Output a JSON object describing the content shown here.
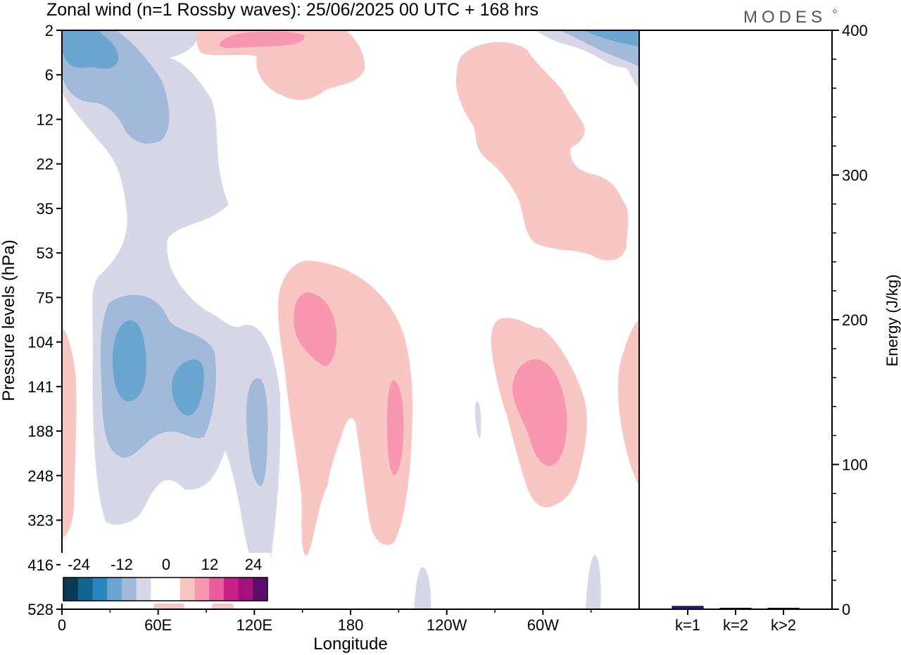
{
  "header": {
    "title": "Zonal wind (n=1 Rossby waves):  25/06/2025  00 UTC  + 168 hrs",
    "logo_text": "MODES"
  },
  "chart_data": [
    {
      "type": "heatmap",
      "title": "Zonal wind (n=1 Rossby waves):  25/06/2025  00 UTC  + 168 hrs",
      "xlabel": "Longitude",
      "ylabel": "Pressure levels (hPa)",
      "x_ticks": [
        "0",
        "60E",
        "120E",
        "180",
        "120W",
        "60W"
      ],
      "x_tick_values": [
        0,
        60,
        120,
        180,
        240,
        300
      ],
      "xlim": [
        0,
        360
      ],
      "y_ticks": [
        "2",
        "6",
        "12",
        "22",
        "35",
        "53",
        "75",
        "104",
        "141",
        "188",
        "248",
        "323",
        "416",
        "528"
      ],
      "y_scale": "pressure levels, top to bottom",
      "colorbar": {
        "tick_labels": [
          "-24",
          "-12",
          "0",
          "12",
          "24"
        ],
        "colors": [
          "#0b3a55",
          "#12658f",
          "#2a86bf",
          "#6aa6cf",
          "#a2bad9",
          "#d6d8e8",
          "#ffffff",
          "#ffffff",
          "#f8c7c3",
          "#f997b0",
          "#ea5c9f",
          "#cc1e8a",
          "#a3117a",
          "#5b0d6b"
        ]
      },
      "regions": [
        {
          "name": "upper-left easterly core",
          "lon_range": [
            0,
            70
          ],
          "levels": [
            "2",
            "22"
          ],
          "sign": "negative",
          "peak": -12
        },
        {
          "name": "western easterly column",
          "lon_range": [
            0,
            100
          ],
          "levels": [
            "2",
            "323"
          ],
          "sign": "negative",
          "peak": -6
        },
        {
          "name": "lower-left easterly core",
          "lon_range": [
            25,
            90
          ],
          "levels": [
            "75",
            "248"
          ],
          "sign": "negative",
          "peak": -12
        },
        {
          "name": "120E easterly",
          "lon_range": [
            115,
            130
          ],
          "levels": [
            "104",
            "248"
          ],
          "sign": "negative",
          "peak": -9
        },
        {
          "name": "180 westerly",
          "lon_range": [
            135,
            215
          ],
          "levels": [
            "53",
            "416"
          ],
          "sign": "positive",
          "peak": 9
        },
        {
          "name": "100W westerly",
          "lon_range": [
            260,
            320
          ],
          "levels": [
            "104",
            "323"
          ],
          "sign": "positive",
          "peak": 9
        },
        {
          "name": "upper 90W westerly",
          "lon_range": [
            245,
            355
          ],
          "levels": [
            "2",
            "53"
          ],
          "sign": "positive",
          "peak": 6
        },
        {
          "name": "upper 120E westerly",
          "lon_range": [
            85,
            190
          ],
          "levels": [
            "2",
            "6"
          ],
          "sign": "positive",
          "peak": 9
        }
      ]
    },
    {
      "type": "bar",
      "ylabel": "Energy (J/kg)",
      "categories": [
        "k=1",
        "k=2",
        "k>2"
      ],
      "values": [
        2,
        0.5,
        0.5
      ],
      "ylim": [
        0,
        400
      ],
      "y_ticks": [
        0,
        100,
        200,
        300,
        400
      ],
      "colors": [
        "#1a1a8f",
        "#000000",
        "#000000"
      ]
    }
  ]
}
